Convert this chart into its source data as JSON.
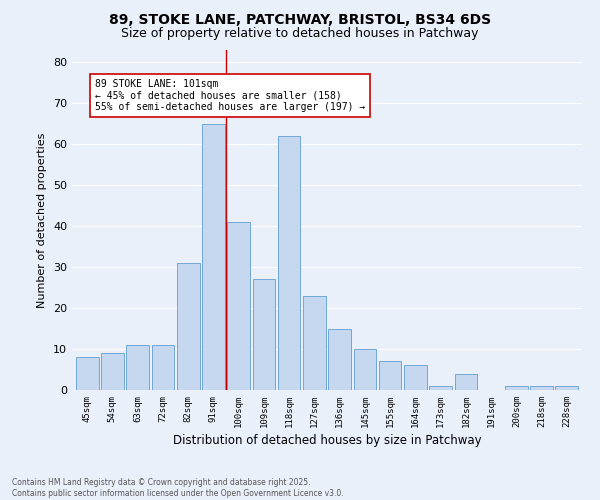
{
  "title1": "89, STOKE LANE, PATCHWAY, BRISTOL, BS34 6DS",
  "title2": "Size of property relative to detached houses in Patchway",
  "xlabel": "Distribution of detached houses by size in Patchway",
  "ylabel": "Number of detached properties",
  "footer1": "Contains HM Land Registry data © Crown copyright and database right 2025.",
  "footer2": "Contains public sector information licensed under the Open Government Licence v3.0.",
  "annotation_line1": "89 STOKE LANE: 101sqm",
  "annotation_line2": "← 45% of detached houses are smaller (158)",
  "annotation_line3": "55% of semi-detached houses are larger (197) →",
  "bar_color": "#c5d8f0",
  "bar_edge_color": "#6fa8d6",
  "vline_color": "#cc0000",
  "vline_x": 5.5,
  "categories": [
    "45sqm",
    "54sqm",
    "63sqm",
    "72sqm",
    "82sqm",
    "91sqm",
    "100sqm",
    "109sqm",
    "118sqm",
    "127sqm",
    "136sqm",
    "145sqm",
    "155sqm",
    "164sqm",
    "173sqm",
    "182sqm",
    "191sqm",
    "200sqm",
    "218sqm",
    "228sqm"
  ],
  "values": [
    8,
    9,
    11,
    11,
    31,
    65,
    41,
    27,
    62,
    23,
    15,
    10,
    7,
    6,
    1,
    4,
    0,
    1,
    1,
    1
  ],
  "ylim": [
    0,
    83
  ],
  "yticks": [
    0,
    10,
    20,
    30,
    40,
    50,
    60,
    70,
    80
  ],
  "bg_color": "#eaf0fa",
  "grid_color": "#ffffff",
  "title1_fontsize": 10,
  "title2_fontsize": 9
}
